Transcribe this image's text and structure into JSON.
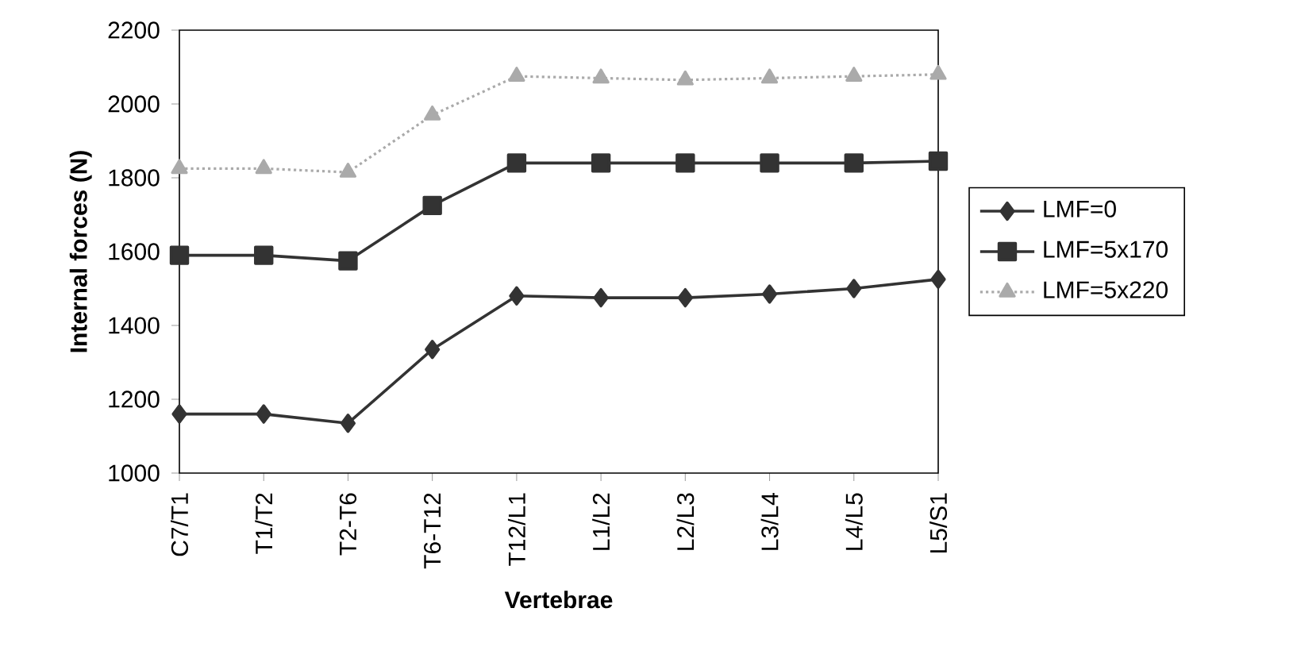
{
  "chart_data": {
    "type": "line",
    "xlabel": "Vertebrae",
    "ylabel": "Internal forces (N)",
    "categories": [
      "C7/T1",
      "T1/T2",
      "T2-T6",
      "T6-T12",
      "T12/L1",
      "L1/L2",
      "L2/L3",
      "L3/L4",
      "L4/L5",
      "L5/S1"
    ],
    "series": [
      {
        "name": "LMF=0",
        "color": "#333333",
        "marker": "diamond",
        "values": [
          1160,
          1160,
          1135,
          1335,
          1480,
          1475,
          1475,
          1485,
          1500,
          1525
        ]
      },
      {
        "name": "LMF=5x170",
        "color": "#333333",
        "marker": "square",
        "values": [
          1590,
          1590,
          1575,
          1725,
          1840,
          1840,
          1840,
          1840,
          1840,
          1845
        ]
      },
      {
        "name": "LMF=5x220",
        "color": "#aaaaaa",
        "marker": "triangle",
        "line_style": "dotted",
        "values": [
          1825,
          1825,
          1815,
          1970,
          2075,
          2070,
          2065,
          2070,
          2075,
          2080
        ]
      }
    ],
    "ylim": [
      1000,
      2200
    ],
    "yticks": [
      1000,
      1200,
      1400,
      1600,
      1800,
      2000,
      2200
    ],
    "grid": false,
    "legend": "right"
  }
}
